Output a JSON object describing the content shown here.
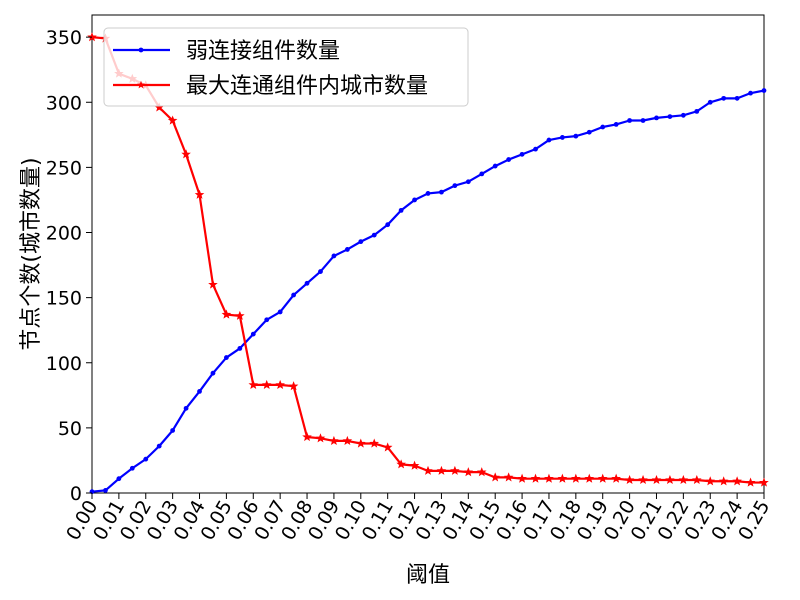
{
  "chart_data": {
    "type": "line",
    "xlabel": "阈值",
    "ylabel": "节点个数(城市数量)",
    "xlim": [
      0.0,
      0.25
    ],
    "ylim": [
      0,
      367
    ],
    "x_ticks": [
      "0.00",
      "0.01",
      "0.02",
      "0.03",
      "0.04",
      "0.05",
      "0.06",
      "0.07",
      "0.08",
      "0.09",
      "0.10",
      "0.11",
      "0.12",
      "0.13",
      "0.14",
      "0.15",
      "0.16",
      "0.17",
      "0.18",
      "0.19",
      "0.20",
      "0.21",
      "0.22",
      "0.23",
      "0.24",
      "0.25"
    ],
    "y_ticks": [
      0,
      50,
      100,
      150,
      200,
      250,
      300,
      350
    ],
    "legend_position": "upper-left",
    "grid": false,
    "x": [
      0.0,
      0.005,
      0.01,
      0.015,
      0.02,
      0.025,
      0.03,
      0.035,
      0.04,
      0.045,
      0.05,
      0.055,
      0.06,
      0.065,
      0.07,
      0.075,
      0.08,
      0.085,
      0.09,
      0.095,
      0.1,
      0.105,
      0.11,
      0.115,
      0.12,
      0.125,
      0.13,
      0.135,
      0.14,
      0.145,
      0.15,
      0.155,
      0.16,
      0.165,
      0.17,
      0.175,
      0.18,
      0.185,
      0.19,
      0.195,
      0.2,
      0.205,
      0.21,
      0.215,
      0.22,
      0.225,
      0.23,
      0.235,
      0.24,
      0.245,
      0.25
    ],
    "series": [
      {
        "name": "弱连接组件数量",
        "color": "#0000ff",
        "marker": "dot",
        "values": [
          1,
          2,
          11,
          19,
          26,
          36,
          48,
          65,
          78,
          92,
          104,
          111,
          122,
          133,
          139,
          152,
          161,
          170,
          182,
          187,
          193,
          198,
          206,
          217,
          225,
          230,
          231,
          236,
          239,
          245,
          251,
          256,
          260,
          264,
          271,
          273,
          274,
          277,
          281,
          283,
          286,
          286,
          288,
          289,
          290,
          293,
          300,
          303,
          303,
          307,
          309
        ]
      },
      {
        "name": "最大连通组件内城市数量",
        "color": "#ff0000",
        "marker": "star",
        "values": [
          350,
          349,
          322,
          318,
          313,
          296,
          286,
          260,
          229,
          160,
          137,
          136,
          83,
          83,
          83,
          82,
          43,
          42,
          40,
          40,
          38,
          38,
          35,
          22,
          21,
          17,
          17,
          17,
          16,
          16,
          12,
          12,
          11,
          11,
          11,
          11,
          11,
          11,
          11,
          11,
          10,
          10,
          10,
          10,
          10,
          10,
          9,
          9,
          9,
          8,
          8
        ]
      }
    ]
  }
}
